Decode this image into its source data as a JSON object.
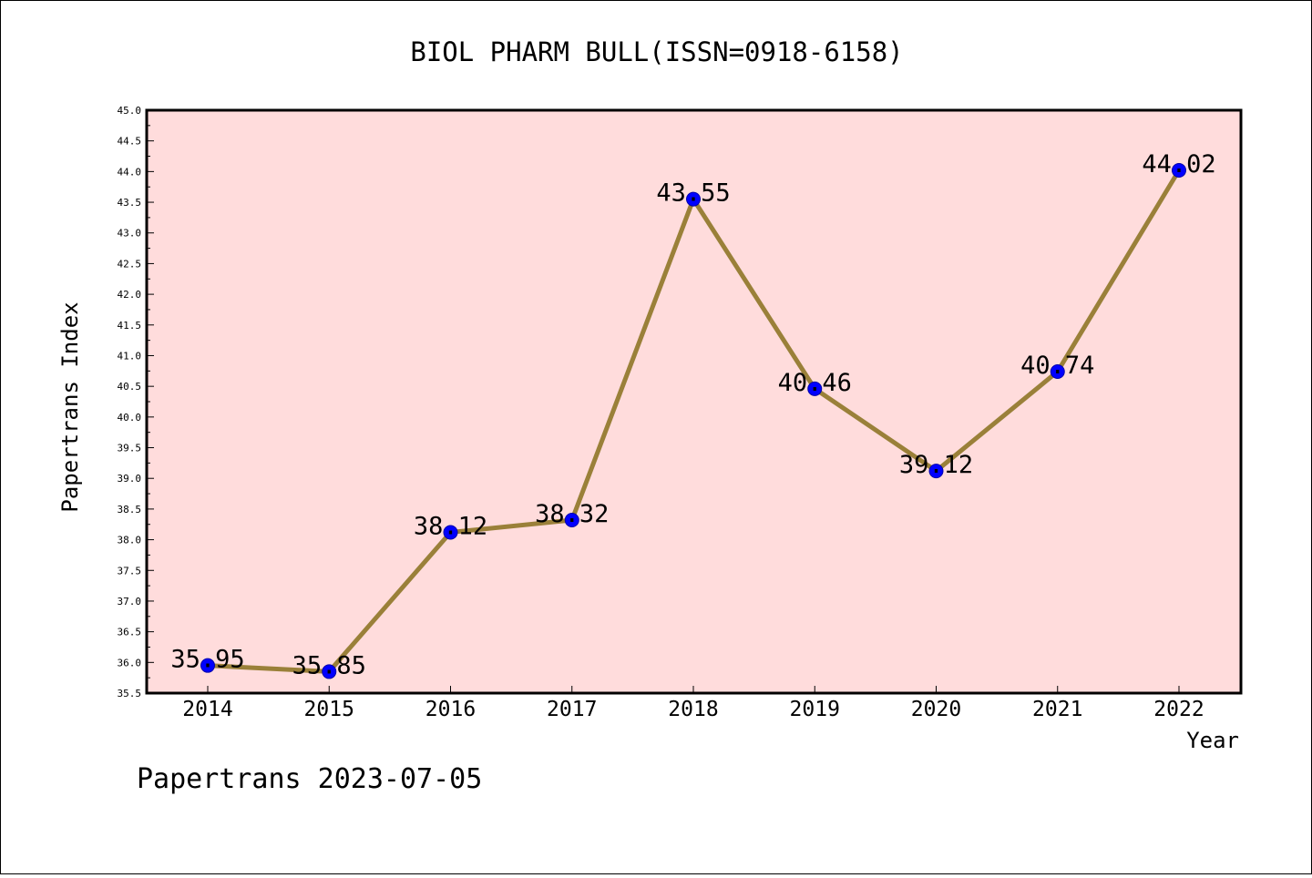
{
  "chart_data": {
    "type": "line",
    "title": "BIOL PHARM BULL(ISSN=0918-6158)",
    "xlabel": "Year",
    "ylabel": "Papertrans Index",
    "categories": [
      "2014",
      "2015",
      "2016",
      "2017",
      "2018",
      "2019",
      "2020",
      "2021",
      "2022"
    ],
    "values": [
      35.95,
      35.85,
      38.12,
      38.32,
      43.55,
      40.46,
      39.12,
      40.74,
      44.02
    ],
    "data_labels": [
      "35.95",
      "35.85",
      "38.12",
      "38.32",
      "43.55",
      "40.46",
      "39.12",
      "40.74",
      "44.02"
    ],
    "ylim": [
      35.5,
      45.0
    ],
    "y_ticks": [
      "35.5",
      "36.0",
      "36.5",
      "37.0",
      "37.5",
      "38.0",
      "38.5",
      "39.0",
      "39.5",
      "40.0",
      "40.5",
      "41.0",
      "41.5",
      "42.0",
      "42.5",
      "43.0",
      "43.5",
      "44.0",
      "44.5",
      "45.0"
    ],
    "colors": {
      "plot_background": "#ffdcdc",
      "line": "#9a8039",
      "marker": "#0000ff"
    },
    "grid": false,
    "legend": "none"
  },
  "footer": {
    "text": "Papertrans 2023-07-05"
  }
}
